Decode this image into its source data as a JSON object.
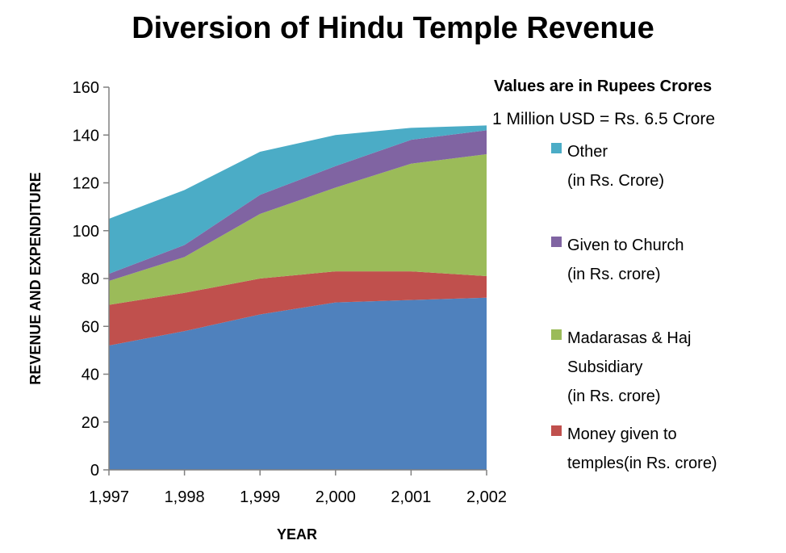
{
  "chart_data": {
    "type": "area",
    "stacked": true,
    "title": "Diversion of Hindu Temple Revenue",
    "xlabel": "YEAR",
    "ylabel": "REVENUE AND EXPENDITURE",
    "x": [
      1997,
      1998,
      1999,
      2000,
      2001,
      2002
    ],
    "x_tick_labels": [
      "1,997",
      "1,998",
      "1,999",
      "2,000",
      "2,001",
      "2,002"
    ],
    "ylim": [
      0,
      160
    ],
    "y_ticks": [
      0,
      20,
      40,
      60,
      80,
      100,
      120,
      140,
      160
    ],
    "grid": false,
    "legend_position": "right",
    "notes": [
      "Values are in Rupees Crores",
      "1 Million USD = Rs. 6.5 Crore"
    ],
    "series": [
      {
        "key": "base",
        "color": "#4F81BD",
        "values": [
          52,
          58,
          65,
          70,
          71,
          72
        ]
      },
      {
        "key": "temples",
        "name_lines": [
          "Money given to",
          "temples(in Rs. crore)"
        ],
        "color": "#C0504D",
        "values": [
          17,
          16,
          15,
          13,
          12,
          9
        ]
      },
      {
        "key": "madarasas",
        "name_lines": [
          "Madarasas & Haj",
          "Subsidiary",
          "(in Rs. crore)"
        ],
        "color": "#9BBB59",
        "values": [
          10,
          15,
          27,
          35,
          45,
          51
        ]
      },
      {
        "key": "church",
        "name_lines": [
          "Given to Church",
          "(in Rs. crore)"
        ],
        "color": "#8064A2",
        "values": [
          3,
          5,
          8,
          9,
          10,
          10
        ]
      },
      {
        "key": "other",
        "name_lines": [
          "Other",
          "(in Rs. Crore)"
        ],
        "color": "#4BACC6",
        "values": [
          23,
          23,
          18,
          13,
          5,
          2
        ]
      }
    ]
  }
}
